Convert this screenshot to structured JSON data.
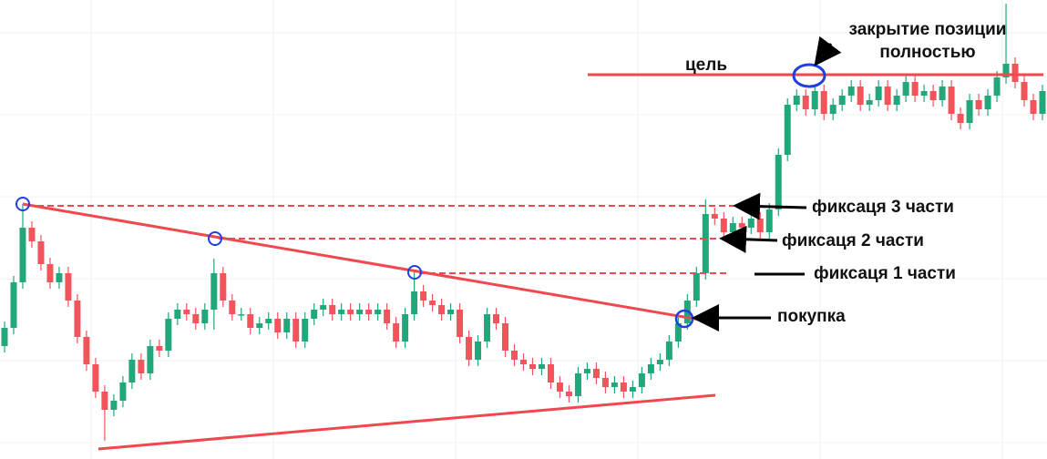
{
  "chart_data": {
    "type": "candlestick",
    "up_color": "#22a77a",
    "down_color": "#f2545b",
    "ylim": [
      0,
      504
    ],
    "open": [
      124,
      144,
      194,
      254,
      239,
      214,
      194,
      204,
      174,
      134,
      104,
      74,
      54,
      64,
      84,
      109,
      94,
      124,
      119,
      154,
      164,
      159,
      149,
      164,
      204,
      174,
      159,
      159,
      144,
      149,
      154,
      139,
      154,
      129,
      154,
      164,
      169,
      159,
      164,
      159,
      164,
      159,
      164,
      149,
      129,
      159,
      184,
      174,
      169,
      159,
      164,
      134,
      109,
      129,
      159,
      149,
      119,
      109,
      104,
      99,
      104,
      84,
      74,
      69,
      94,
      99,
      89,
      79,
      84,
      74,
      79,
      94,
      104,
      109,
      129,
      149,
      174,
      204,
      269,
      264,
      249,
      259,
      254,
      264,
      249,
      274,
      334,
      389,
      399,
      384,
      404,
      379,
      389,
      399,
      409,
      389,
      394,
      409,
      389,
      399,
      414,
      399,
      404,
      394,
      409,
      379,
      369,
      394,
      384,
      399,
      419,
      434,
      414,
      394,
      379
    ],
    "high": [
      151,
      201,
      280,
      261,
      246,
      221,
      211,
      211,
      181,
      141,
      111,
      81,
      71,
      91,
      116,
      116,
      131,
      131,
      161,
      171,
      171,
      166,
      171,
      220,
      211,
      181,
      166,
      166,
      156,
      161,
      161,
      161,
      161,
      161,
      171,
      176,
      176,
      171,
      171,
      171,
      171,
      171,
      171,
      156,
      166,
      205,
      191,
      181,
      176,
      171,
      171,
      141,
      136,
      166,
      166,
      156,
      126,
      116,
      111,
      111,
      111,
      91,
      81,
      101,
      106,
      106,
      96,
      91,
      91,
      86,
      101,
      111,
      116,
      136,
      156,
      181,
      211,
      285,
      276,
      271,
      266,
      266,
      271,
      271,
      281,
      341,
      396,
      406,
      406,
      411,
      411,
      396,
      406,
      416,
      416,
      401,
      416,
      416,
      406,
      421,
      421,
      411,
      411,
      416,
      416,
      386,
      401,
      401,
      406,
      426,
      500,
      441,
      421,
      401,
      411
    ],
    "low": [
      117,
      137,
      187,
      232,
      207,
      187,
      187,
      167,
      127,
      97,
      67,
      20,
      47,
      57,
      77,
      87,
      87,
      112,
      112,
      147,
      152,
      142,
      142,
      142,
      167,
      152,
      152,
      137,
      137,
      142,
      132,
      132,
      122,
      122,
      147,
      157,
      152,
      152,
      152,
      152,
      152,
      152,
      142,
      122,
      122,
      152,
      167,
      162,
      152,
      152,
      127,
      102,
      102,
      122,
      142,
      112,
      102,
      97,
      92,
      92,
      77,
      67,
      62,
      62,
      87,
      82,
      72,
      72,
      67,
      67,
      72,
      87,
      97,
      102,
      122,
      142,
      167,
      197,
      257,
      242,
      242,
      247,
      247,
      242,
      242,
      267,
      327,
      382,
      377,
      377,
      372,
      372,
      382,
      392,
      382,
      382,
      387,
      382,
      382,
      392,
      392,
      392,
      387,
      387,
      372,
      362,
      362,
      377,
      377,
      392,
      412,
      407,
      387,
      372,
      372
    ],
    "close": [
      144,
      194,
      254,
      239,
      214,
      194,
      204,
      174,
      134,
      104,
      74,
      54,
      64,
      84,
      109,
      94,
      124,
      119,
      154,
      164,
      159,
      149,
      164,
      204,
      174,
      159,
      159,
      144,
      149,
      154,
      139,
      154,
      129,
      154,
      164,
      169,
      159,
      164,
      159,
      164,
      159,
      164,
      149,
      129,
      159,
      184,
      174,
      169,
      159,
      164,
      134,
      109,
      129,
      159,
      149,
      119,
      109,
      104,
      99,
      104,
      84,
      74,
      69,
      94,
      99,
      89,
      79,
      84,
      74,
      79,
      94,
      104,
      109,
      129,
      149,
      174,
      204,
      269,
      264,
      249,
      259,
      254,
      264,
      249,
      274,
      334,
      389,
      399,
      384,
      404,
      379,
      389,
      399,
      409,
      389,
      394,
      409,
      389,
      399,
      414,
      399,
      404,
      394,
      409,
      379,
      369,
      394,
      384,
      399,
      419,
      434,
      414,
      394,
      379,
      404
    ],
    "annotations": {
      "target": "цель",
      "close_line1": "закрытие позиции",
      "close_line2": "полностью",
      "fix3": "фиксаця 3 части",
      "fix2": "фиксаця 2 части",
      "fix1": "фиксаця 1 части",
      "buy": "покупка"
    }
  }
}
